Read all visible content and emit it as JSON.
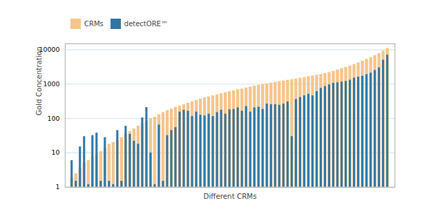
{
  "chart_data": {
    "type": "bar",
    "xlabel": "Different CRMs",
    "ylabel": "Gold Concentration",
    "categories": [
      null,
      null,
      null,
      null,
      null,
      null,
      null,
      null,
      null,
      null,
      null,
      null,
      null,
      null,
      null,
      null,
      null,
      null,
      null,
      null,
      null,
      null,
      null,
      null,
      null,
      null,
      null,
      null,
      null,
      null,
      null,
      null,
      null,
      null,
      null,
      null,
      null,
      null,
      null,
      null,
      null,
      null,
      null,
      null,
      null,
      null,
      null,
      null,
      null,
      null,
      null,
      null,
      null,
      null,
      null,
      null,
      null,
      null,
      null,
      null,
      null,
      null,
      null,
      null,
      null,
      null,
      null,
      null,
      null,
      null,
      null,
      null,
      null,
      null,
      null,
      null,
      null
    ],
    "series": [
      {
        "name": "CRMs",
        "color": "#f5c48a",
        "values": [
          1.8,
          2.5,
          3.5,
          5.0,
          6.0,
          7.5,
          9.0,
          11.0,
          14.0,
          18.0,
          20.0,
          23.0,
          28.0,
          35.0,
          42.0,
          50.0,
          60.0,
          70.0,
          85.0,
          100.0,
          110.0,
          130.0,
          150.0,
          170.0,
          190.0,
          210.0,
          230.0,
          255.0,
          280.0,
          310.0,
          340.0,
          370.0,
          400.0,
          430.0,
          460.0,
          490.0,
          530.0,
          570.0,
          610.0,
          650.0,
          690.0,
          730.0,
          780.0,
          830.0,
          880.0,
          930.0,
          980.0,
          1030.0,
          1080.0,
          1130.0,
          1180.0,
          1240.0,
          1300.0,
          1360.0,
          1420.0,
          1500.0,
          1580.0,
          1660.0,
          1750.0,
          1840.0,
          1930.0,
          2050.0,
          2200.0,
          2380.0,
          2600.0,
          2850.0,
          3100.0,
          3400.0,
          3750.0,
          4200.0,
          4700.0,
          5300.0,
          6000.0,
          6800.0,
          7800.0,
          9200.0,
          11000.0
        ]
      },
      {
        "name": "detectORE™",
        "color": "#2e75a3",
        "values": [
          6.0,
          1.5,
          15.0,
          30.0,
          1.2,
          32.0,
          38.0,
          1.5,
          28.0,
          1.5,
          1.2,
          45.0,
          1.5,
          60.0,
          35.0,
          22.0,
          18.0,
          105.0,
          210.0,
          10.0,
          1.2,
          65.0,
          1.5,
          32.0,
          45.0,
          55.0,
          155.0,
          175.0,
          165.0,
          115.0,
          155.0,
          125.0,
          120.0,
          135.0,
          115.0,
          150.0,
          175.0,
          135.0,
          180.0,
          185.0,
          205.0,
          165.0,
          225.0,
          155.0,
          205.0,
          215.0,
          185.0,
          265.0,
          255.0,
          255.0,
          245.0,
          265.0,
          305.0,
          30.0,
          360.0,
          410.0,
          460.0,
          510.0,
          460.0,
          610.0,
          760.0,
          860.0,
          960.0,
          1060.0,
          1110.0,
          1160.0,
          1210.0,
          1310.0,
          1510.0,
          1610.0,
          1710.0,
          1910.0,
          2110.0,
          2510.0,
          3010.0,
          5010.0,
          7010.0
        ]
      }
    ],
    "log": "y",
    "ylim": [
      1,
      15000
    ],
    "yticks": [
      1,
      10,
      100,
      1000,
      10000
    ],
    "grid": true,
    "legend": "upper left",
    "tick_labels": "y"
  }
}
